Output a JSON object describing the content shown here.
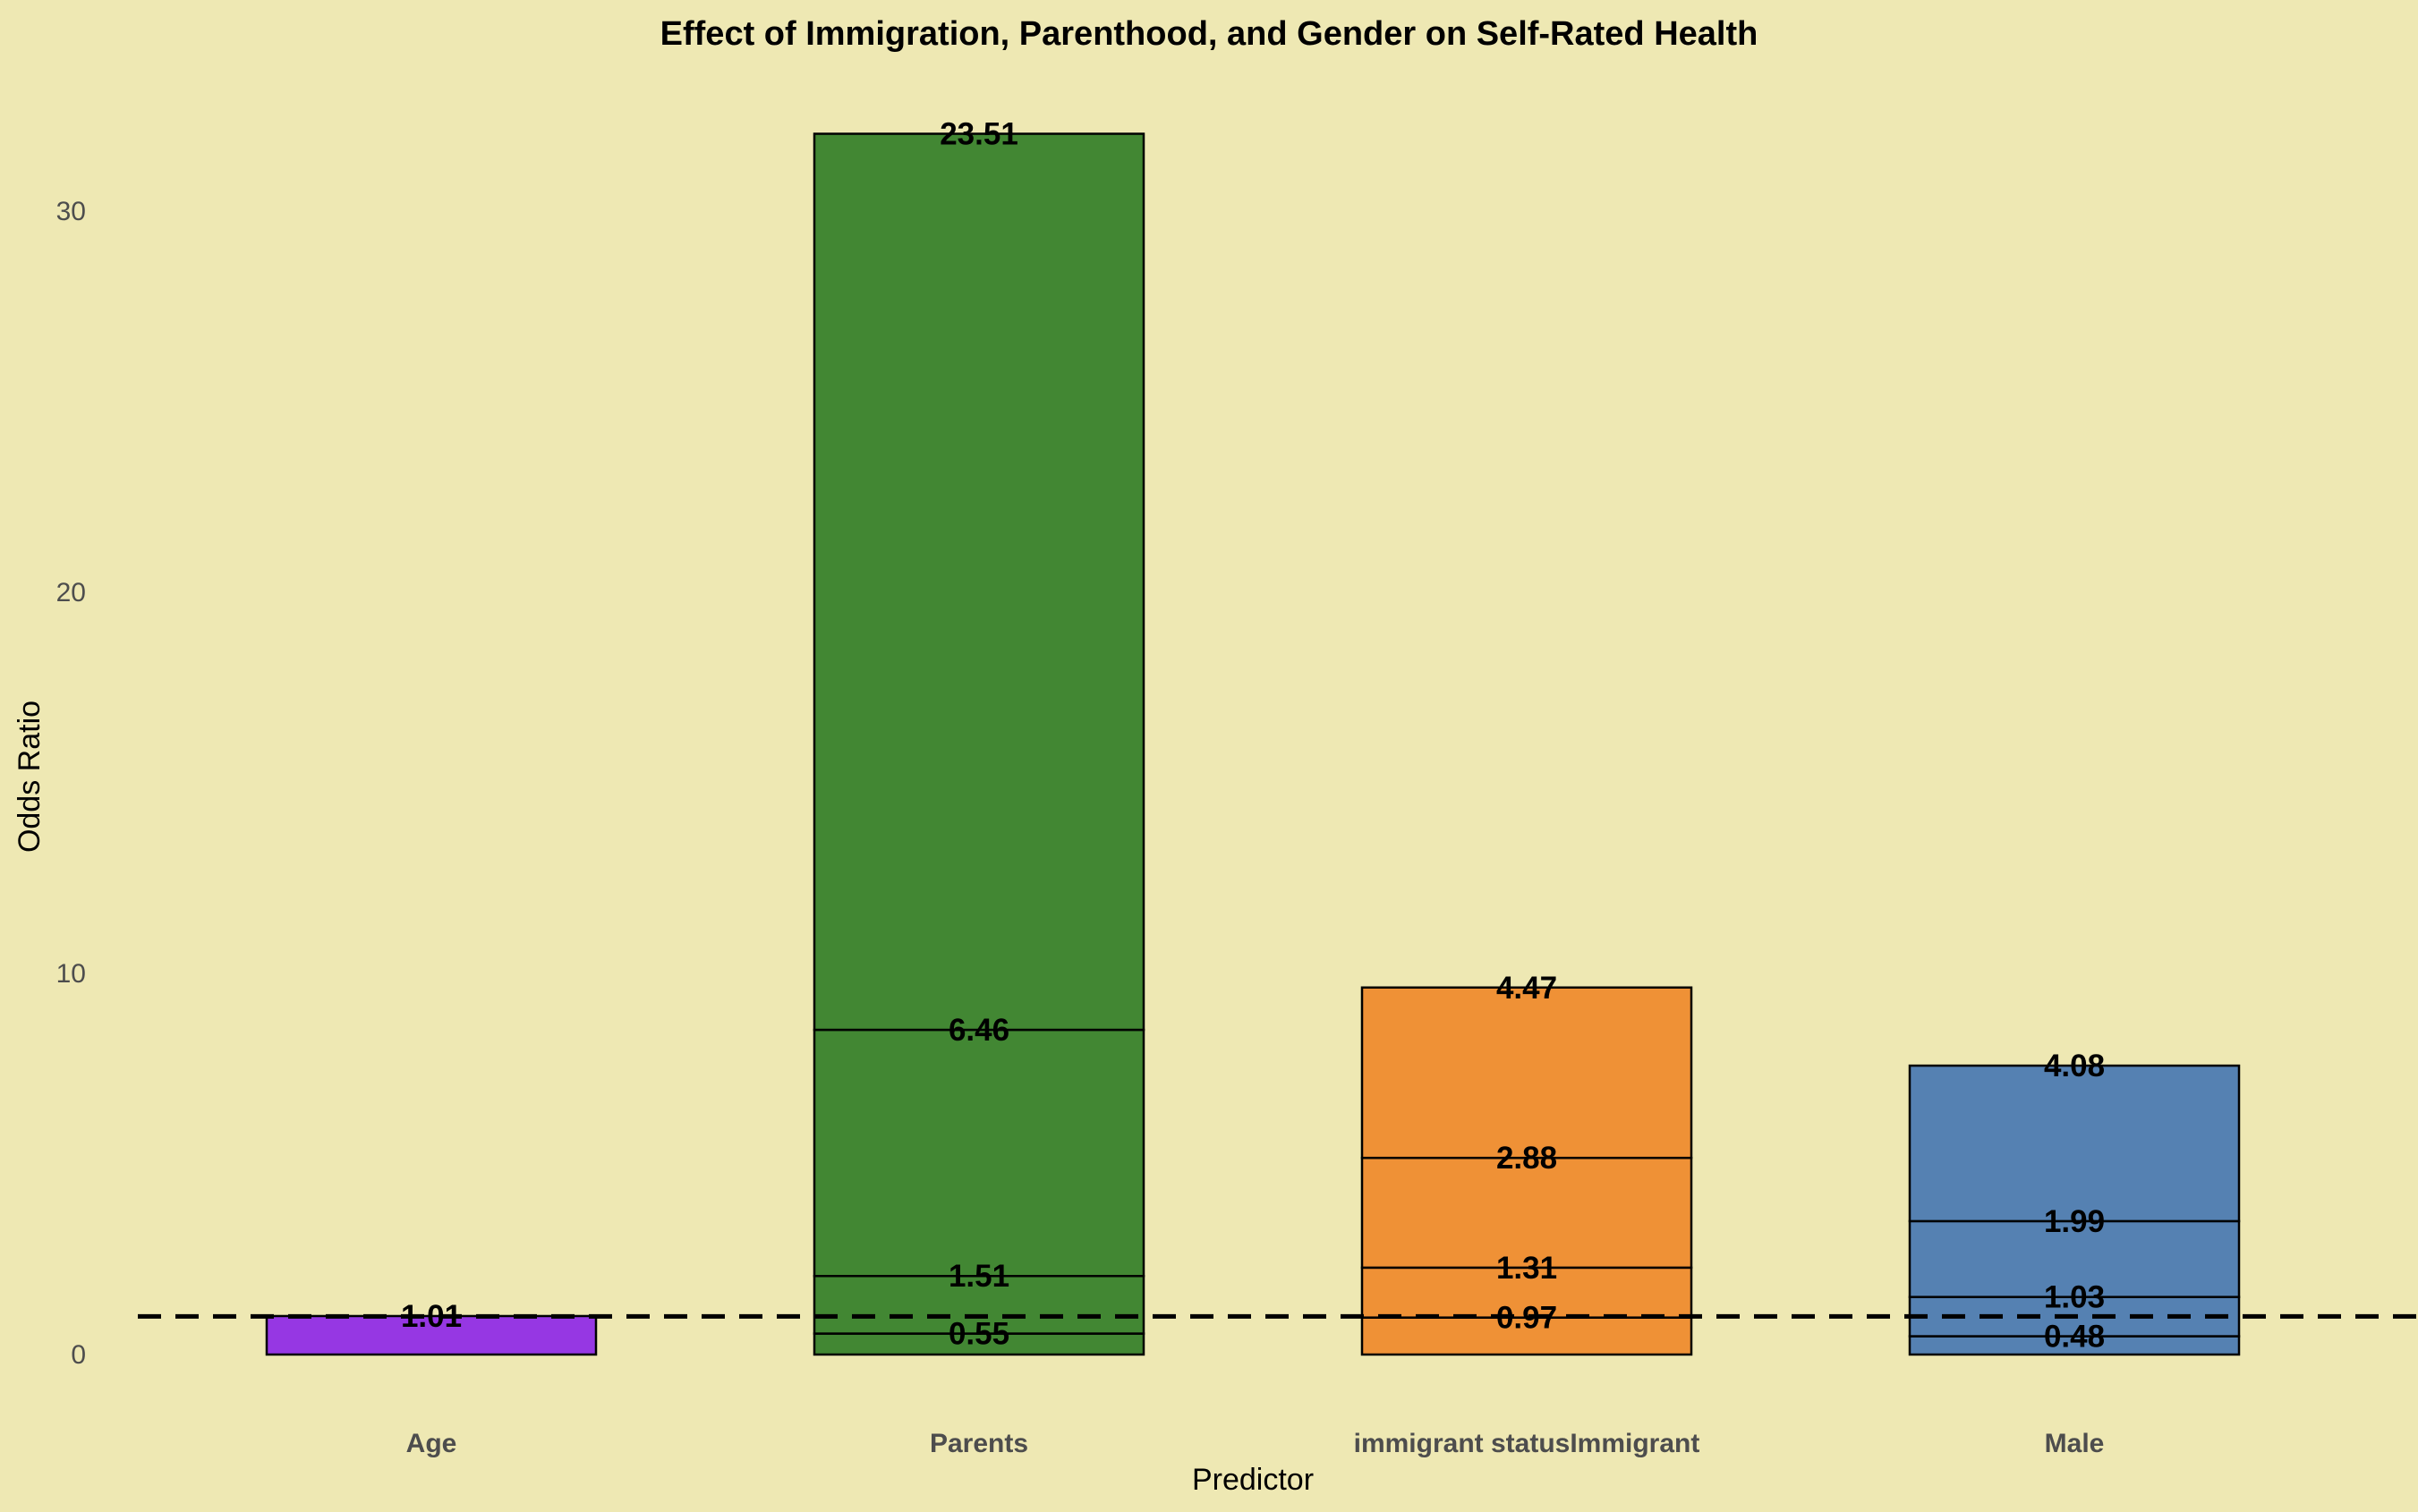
{
  "chart_data": {
    "type": "bar",
    "stacked": true,
    "title": "Effect of Immigration, Parenthood, and Gender on Self-Rated Health",
    "xlabel": "Predictor",
    "ylabel": "Odds Ratio",
    "ylim": [
      0,
      32.5
    ],
    "yticks": [
      0,
      10,
      20,
      30
    ],
    "grid": false,
    "legend": "none",
    "reference_line": {
      "y": 1,
      "style": "dashed",
      "color": "#000000"
    },
    "categories": [
      "Age",
      "Parents",
      "immigrant statusImmigrant",
      "Male"
    ],
    "bars": [
      {
        "category": "Age",
        "color": "#9637e3",
        "segments": [
          1.01
        ],
        "labels": [
          "1.01"
        ]
      },
      {
        "category": "Parents",
        "color": "#428733",
        "segments": [
          0.55,
          1.51,
          6.46,
          23.51
        ],
        "labels": [
          "0.55",
          "1.51",
          "6.46",
          "23.51"
        ]
      },
      {
        "category": "immigrant statusImmigrant",
        "color": "#ef9136",
        "segments": [
          0.97,
          1.31,
          2.88,
          4.47
        ],
        "labels": [
          "0.97",
          "1.31",
          "2.88",
          "4.47"
        ]
      },
      {
        "category": "Male",
        "color": "#5581b2",
        "segments": [
          0.48,
          1.03,
          1.99,
          4.08
        ],
        "labels": [
          "0.48",
          "1.03",
          "1.99",
          "4.08"
        ]
      }
    ]
  }
}
